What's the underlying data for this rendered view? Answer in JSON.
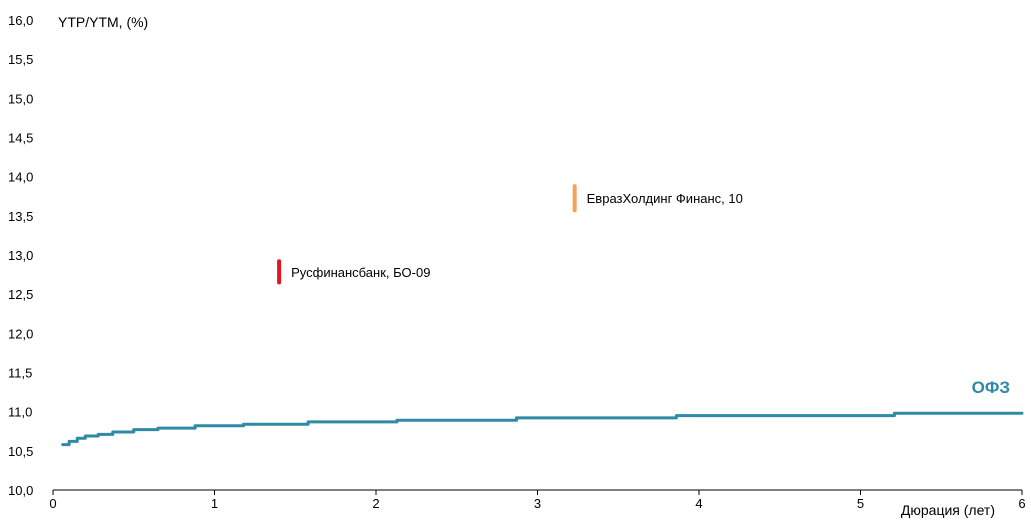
{
  "chart_data": {
    "type": "line",
    "ylabel": "YTP/YTM, (%)",
    "xlabel": "Дюрация (лет)",
    "xlim": [
      0,
      6
    ],
    "ylim": [
      10.0,
      16.0
    ],
    "x_ticks": [
      "0",
      "1",
      "2",
      "3",
      "4",
      "5",
      "6"
    ],
    "y_ticks": [
      "10,0",
      "10,5",
      "11,0",
      "11,5",
      "12,0",
      "12,5",
      "13,0",
      "13,5",
      "14,0",
      "14,5",
      "15,0",
      "15,5",
      "16,0"
    ],
    "grid": false,
    "series": [
      {
        "name": "ОФЗ",
        "color": "#2e8aa5",
        "x": [
          0.06,
          0.1,
          0.15,
          0.2,
          0.28,
          0.37,
          0.5,
          0.65,
          0.88,
          1.18,
          1.58,
          2.13,
          2.87,
          3.86,
          5.21,
          6.0
        ],
        "y": [
          10.58,
          10.62,
          10.66,
          10.69,
          10.71,
          10.74,
          10.77,
          10.79,
          10.82,
          10.84,
          10.87,
          10.89,
          10.92,
          10.95,
          10.98,
          10.98
        ]
      }
    ],
    "annotations": [
      {
        "label": "Русфинансбанк,  БО-09",
        "x": 1.4,
        "y_low": 12.65,
        "y_high": 12.92,
        "color": "#e8141b"
      },
      {
        "label": "ЕвразХолдинг Финанс,  10",
        "x": 3.23,
        "y_low": 13.57,
        "y_high": 13.88,
        "color": "#f4a15a"
      }
    ]
  }
}
